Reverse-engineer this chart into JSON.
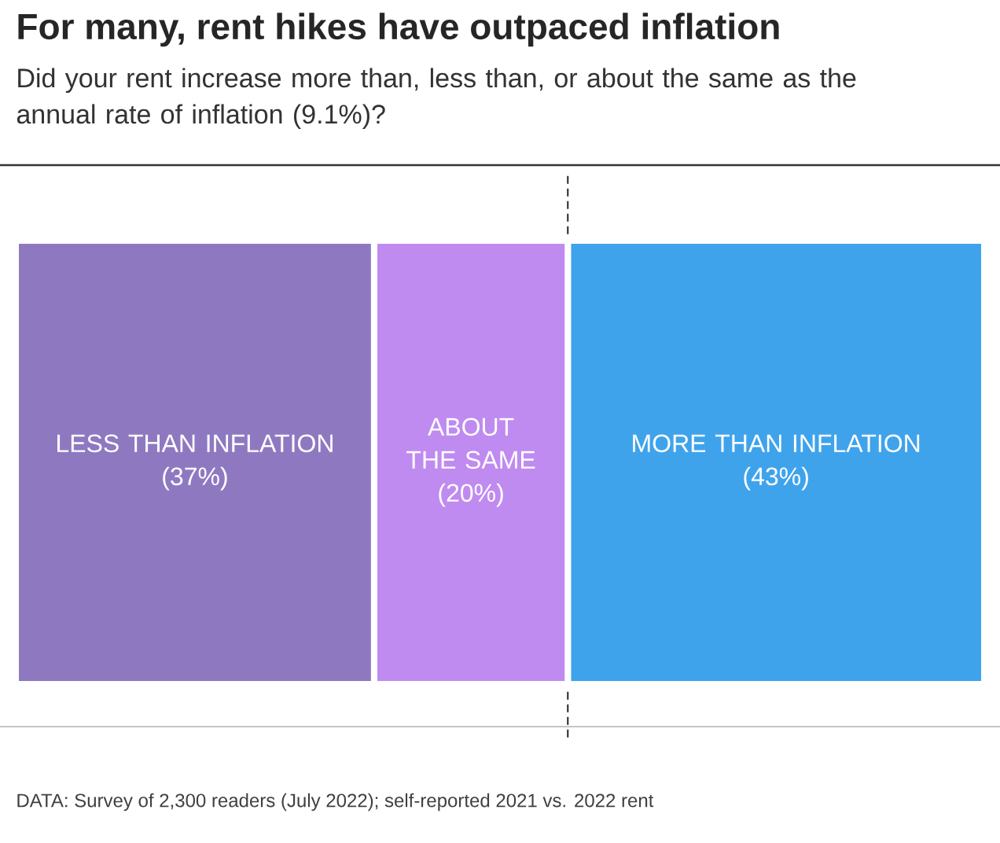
{
  "chart_data": {
    "type": "bar",
    "orientation": "horizontal",
    "stacked": true,
    "title": "For many, rent hikes have outpaced inflation",
    "subtitle": "Did your rent increase more than, less than, or about the same as the annual rate of inflation (9.1%)?",
    "categories": [
      null
    ],
    "series": [
      {
        "name": "LESS THAN INFLATION",
        "color": "#8e79c1",
        "values": [
          37
        ],
        "value_labels": [
          "(37%)"
        ]
      },
      {
        "name": "ABOUT THE SAME",
        "color": "#c08bf0",
        "values": [
          20
        ],
        "value_labels": [
          "(20%)"
        ]
      },
      {
        "name": "MORE THAN INFLATION",
        "color": "#3fa3ec",
        "values": [
          43
        ],
        "value_labels": [
          "(43%)"
        ]
      }
    ],
    "ref_lines": [
      {
        "axis": "x",
        "value": 57,
        "line_style": "dashed"
      }
    ],
    "annotations": [
      "DATA: Survey of 2,300 readers (July 2022); self-reported 2021 vs. 2022 rent"
    ]
  }
}
